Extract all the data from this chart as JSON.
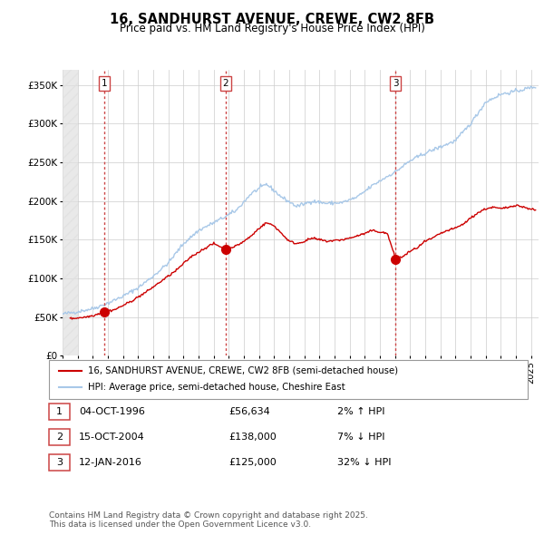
{
  "title": "16, SANDHURST AVENUE, CREWE, CW2 8FB",
  "subtitle": "Price paid vs. HM Land Registry's House Price Index (HPI)",
  "xlim_start": 1994.0,
  "xlim_end": 2025.5,
  "ylim": [
    0,
    370000
  ],
  "yticks": [
    0,
    50000,
    100000,
    150000,
    200000,
    250000,
    300000,
    350000
  ],
  "ytick_labels": [
    "£0",
    "£50K",
    "£100K",
    "£150K",
    "£200K",
    "£250K",
    "£300K",
    "£350K"
  ],
  "sale_color": "#cc0000",
  "hpi_line_color": "#a8c8e8",
  "sale_dates": [
    1996.76,
    2004.79,
    2016.04
  ],
  "sale_prices": [
    56634,
    138000,
    125000
  ],
  "sale_labels": [
    "1",
    "2",
    "3"
  ],
  "vline_color": "#cc4444",
  "legend_sale_label": "16, SANDHURST AVENUE, CREWE, CW2 8FB (semi-detached house)",
  "legend_hpi_label": "HPI: Average price, semi-detached house, Cheshire East",
  "table_rows": [
    {
      "num": "1",
      "date": "04-OCT-1996",
      "price": "£56,634",
      "change": "2% ↑ HPI"
    },
    {
      "num": "2",
      "date": "15-OCT-2004",
      "price": "£138,000",
      "change": "7% ↓ HPI"
    },
    {
      "num": "3",
      "date": "12-JAN-2016",
      "price": "£125,000",
      "change": "32% ↓ HPI"
    }
  ],
  "footnote": "Contains HM Land Registry data © Crown copyright and database right 2025.\nThis data is licensed under the Open Government Licence v3.0.",
  "background_color": "#ffffff",
  "grid_color": "#cccccc"
}
